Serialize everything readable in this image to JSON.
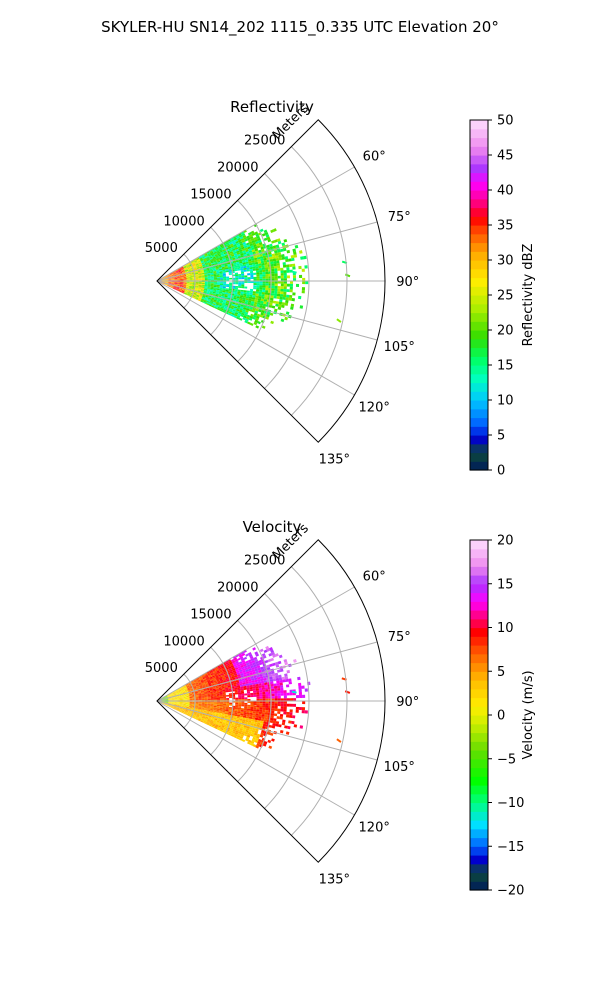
{
  "figure": {
    "title": "SKYLER-HU  SN14_202  1115_0.335 UTC Elevation 20°"
  },
  "chart_data": [
    {
      "type": "heatmap",
      "projection": "polar-sector",
      "title": "Reflectivity",
      "radial_label": "Meters",
      "radial_ticks": [
        "5000",
        "10000",
        "15000",
        "20000",
        "25000"
      ],
      "radial_values": [
        5000,
        10000,
        15000,
        20000,
        25000
      ],
      "rmax": 30000,
      "azimuth_range": [
        45,
        135
      ],
      "angle_ticks": [
        "60°",
        "75°",
        "90°",
        "105°",
        "120°",
        "135°"
      ],
      "angle_values": [
        60,
        75,
        90,
        105,
        120,
        135
      ],
      "grid": true,
      "data_extent": {
        "range_max_m": 20000,
        "azimuth_min": 60,
        "azimuth_max": 115
      },
      "colorbar": {
        "label": "Reflectivity dBZ",
        "min": 0,
        "max": 50,
        "ticks": [
          "0",
          "5",
          "10",
          "15",
          "20",
          "25",
          "30",
          "35",
          "40",
          "45",
          "50"
        ],
        "tick_values": [
          0,
          5,
          10,
          15,
          20,
          25,
          30,
          35,
          40,
          45,
          50
        ],
        "stops": [
          {
            "v": 0,
            "c": "#001a5c"
          },
          {
            "v": 2.5,
            "c": "#0d4a3a"
          },
          {
            "v": 4.5,
            "c": "#0000cc"
          },
          {
            "v": 6.5,
            "c": "#0060ff"
          },
          {
            "v": 10,
            "c": "#00c8ff"
          },
          {
            "v": 13,
            "c": "#00ffc0"
          },
          {
            "v": 16,
            "c": "#00ff60"
          },
          {
            "v": 19,
            "c": "#33dd00"
          },
          {
            "v": 23,
            "c": "#aaee00"
          },
          {
            "v": 27,
            "c": "#ffee00"
          },
          {
            "v": 31,
            "c": "#ffaa00"
          },
          {
            "v": 34,
            "c": "#ff5000"
          },
          {
            "v": 36,
            "c": "#ff0000"
          },
          {
            "v": 38.5,
            "c": "#ff0090"
          },
          {
            "v": 41,
            "c": "#ff00ff"
          },
          {
            "v": 43,
            "c": "#aa33ff"
          },
          {
            "v": 46,
            "c": "#ee88ee"
          },
          {
            "v": 50,
            "c": "#ffe0ff"
          }
        ]
      }
    },
    {
      "type": "heatmap",
      "projection": "polar-sector",
      "title": "Velocity",
      "radial_label": "Meters",
      "radial_ticks": [
        "5000",
        "10000",
        "15000",
        "20000",
        "25000"
      ],
      "radial_values": [
        5000,
        10000,
        15000,
        20000,
        25000
      ],
      "rmax": 30000,
      "azimuth_range": [
        45,
        135
      ],
      "angle_ticks": [
        "60°",
        "75°",
        "90°",
        "105°",
        "120°",
        "135°"
      ],
      "angle_values": [
        60,
        75,
        90,
        105,
        120,
        135
      ],
      "grid": true,
      "data_extent": {
        "range_max_m": 20000,
        "azimuth_min": 60,
        "azimuth_max": 115
      },
      "colorbar": {
        "label": "Velocity (m/s)",
        "min": -20,
        "max": 20,
        "ticks": [
          "−20",
          "−15",
          "−10",
          "−5",
          "0",
          "5",
          "10",
          "15",
          "20"
        ],
        "tick_values": [
          -20,
          -15,
          -10,
          -5,
          0,
          5,
          10,
          15,
          20
        ],
        "stops": [
          {
            "v": -20,
            "c": "#001a5c"
          },
          {
            "v": -18,
            "c": "#0d4a3a"
          },
          {
            "v": -16.5,
            "c": "#0000cc"
          },
          {
            "v": -15,
            "c": "#0060ff"
          },
          {
            "v": -12.5,
            "c": "#00e0ff"
          },
          {
            "v": -10,
            "c": "#00ff80"
          },
          {
            "v": -7.5,
            "c": "#00ff00"
          },
          {
            "v": -4,
            "c": "#66dd00"
          },
          {
            "v": -1,
            "c": "#ccee00"
          },
          {
            "v": 1,
            "c": "#ffee00"
          },
          {
            "v": 4,
            "c": "#ffbb00"
          },
          {
            "v": 7,
            "c": "#ff6000"
          },
          {
            "v": 9.5,
            "c": "#ff0000"
          },
          {
            "v": 11.5,
            "c": "#ff0090"
          },
          {
            "v": 13,
            "c": "#ff00ff"
          },
          {
            "v": 15,
            "c": "#aa33ff"
          },
          {
            "v": 17,
            "c": "#ee88ee"
          },
          {
            "v": 20,
            "c": "#ffe0ff"
          }
        ]
      }
    }
  ]
}
